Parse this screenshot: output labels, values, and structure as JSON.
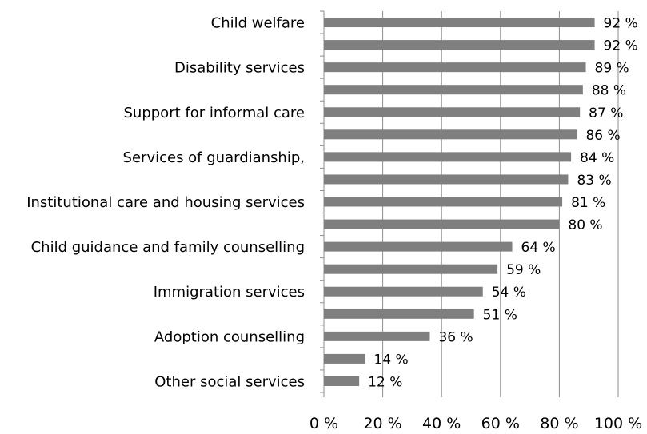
{
  "chart_data": {
    "type": "bar",
    "orientation": "horizontal",
    "title": "",
    "xlabel": "",
    "ylabel": "",
    "xlim": [
      0,
      100
    ],
    "x_ticks": [
      0,
      20,
      40,
      60,
      80,
      100
    ],
    "x_tick_labels": [
      "0 %",
      "20 %",
      "40 %",
      "60 %",
      "80 %",
      "100 %"
    ],
    "grid": "vertical",
    "legend": "none",
    "bar_color": "#7f7f7f",
    "categories": [
      "Child welfare",
      "",
      "Disability services",
      "",
      "Support for informal care",
      "",
      "Services of guardianship,",
      "",
      "Institutional care and housing services",
      "",
      "Child guidance and family counselling",
      "",
      "Immigration services",
      "",
      "Adoption counselling",
      "",
      "Other social services"
    ],
    "values": [
      92,
      92,
      89,
      88,
      87,
      86,
      84,
      83,
      81,
      80,
      64,
      59,
      54,
      51,
      36,
      14,
      12
    ],
    "value_labels": [
      "92 %",
      "92 %",
      "89 %",
      "88 %",
      "87 %",
      "86 %",
      "84 %",
      "83 %",
      "81 %",
      "80 %",
      "64 %",
      "59 %",
      "54 %",
      "51 %",
      "36 %",
      "14 %",
      "12 %"
    ]
  }
}
